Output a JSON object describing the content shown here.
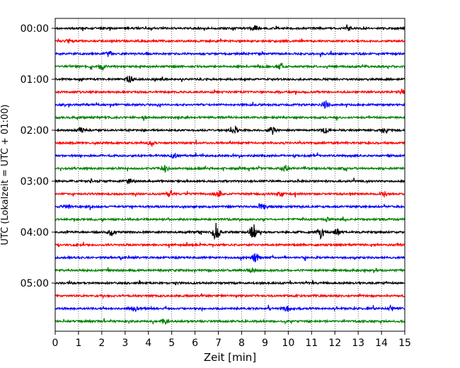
{
  "chart_data": {
    "type": "line",
    "title": "",
    "xlabel": "Zeit  [min]",
    "ylabel": "UTC (Lokalzeit = UTC + 01:00)",
    "xlim": [
      0,
      15
    ],
    "x_ticks": [
      "0",
      "1",
      "2",
      "3",
      "4",
      "5",
      "6",
      "7",
      "8",
      "9",
      "10",
      "11",
      "12",
      "13",
      "14",
      "15"
    ],
    "y_tick_labels": [
      "00:00",
      "01:00",
      "02:00",
      "03:00",
      "04:00",
      "05:00"
    ],
    "trace_interval_min": 15,
    "trace_count": 24,
    "trace_colors": [
      "#000000",
      "#ff0000",
      "#0000ff",
      "#008000"
    ],
    "grid": "vertical dotted",
    "events": [
      {
        "trace": 0,
        "t": 8.6,
        "amp": 3
      },
      {
        "trace": 0,
        "t": 12.6,
        "amp": 3
      },
      {
        "trace": 1,
        "t": 0.6,
        "amp": 3
      },
      {
        "trace": 2,
        "t": 2.3,
        "amp": 3
      },
      {
        "trace": 3,
        "t": 2.0,
        "amp": 4
      },
      {
        "trace": 3,
        "t": 9.6,
        "amp": 3
      },
      {
        "trace": 4,
        "t": 3.2,
        "amp": 4
      },
      {
        "trace": 5,
        "t": 14.9,
        "amp": 4
      },
      {
        "trace": 6,
        "t": 11.6,
        "amp": 5
      },
      {
        "trace": 8,
        "t": 1.1,
        "amp": 4
      },
      {
        "trace": 8,
        "t": 7.7,
        "amp": 5
      },
      {
        "trace": 8,
        "t": 9.3,
        "amp": 4
      },
      {
        "trace": 8,
        "t": 11.6,
        "amp": 4
      },
      {
        "trace": 8,
        "t": 14.1,
        "amp": 4
      },
      {
        "trace": 9,
        "t": 4.1,
        "amp": 3
      },
      {
        "trace": 10,
        "t": 5.1,
        "amp": 3
      },
      {
        "trace": 11,
        "t": 4.7,
        "amp": 4
      },
      {
        "trace": 11,
        "t": 9.9,
        "amp": 4
      },
      {
        "trace": 11,
        "t": 12.3,
        "amp": 3
      },
      {
        "trace": 12,
        "t": 3.2,
        "amp": 3
      },
      {
        "trace": 13,
        "t": 4.9,
        "amp": 4
      },
      {
        "trace": 13,
        "t": 7.0,
        "amp": 4
      },
      {
        "trace": 13,
        "t": 9.7,
        "amp": 3
      },
      {
        "trace": 13,
        "t": 14.1,
        "amp": 3
      },
      {
        "trace": 14,
        "t": 0.5,
        "amp": 3
      },
      {
        "trace": 14,
        "t": 8.9,
        "amp": 3
      },
      {
        "trace": 15,
        "t": 11.6,
        "amp": 3
      },
      {
        "trace": 16,
        "t": 2.4,
        "amp": 5
      },
      {
        "trace": 16,
        "t": 6.9,
        "amp": 12
      },
      {
        "trace": 16,
        "t": 8.5,
        "amp": 10
      },
      {
        "trace": 16,
        "t": 11.4,
        "amp": 8
      },
      {
        "trace": 16,
        "t": 12.1,
        "amp": 4
      },
      {
        "trace": 18,
        "t": 8.6,
        "amp": 6
      },
      {
        "trace": 19,
        "t": 8.4,
        "amp": 3
      },
      {
        "trace": 22,
        "t": 3.4,
        "amp": 4
      },
      {
        "trace": 22,
        "t": 9.9,
        "amp": 5
      },
      {
        "trace": 22,
        "t": 14.4,
        "amp": 3
      },
      {
        "trace": 23,
        "t": 4.7,
        "amp": 3
      }
    ]
  }
}
